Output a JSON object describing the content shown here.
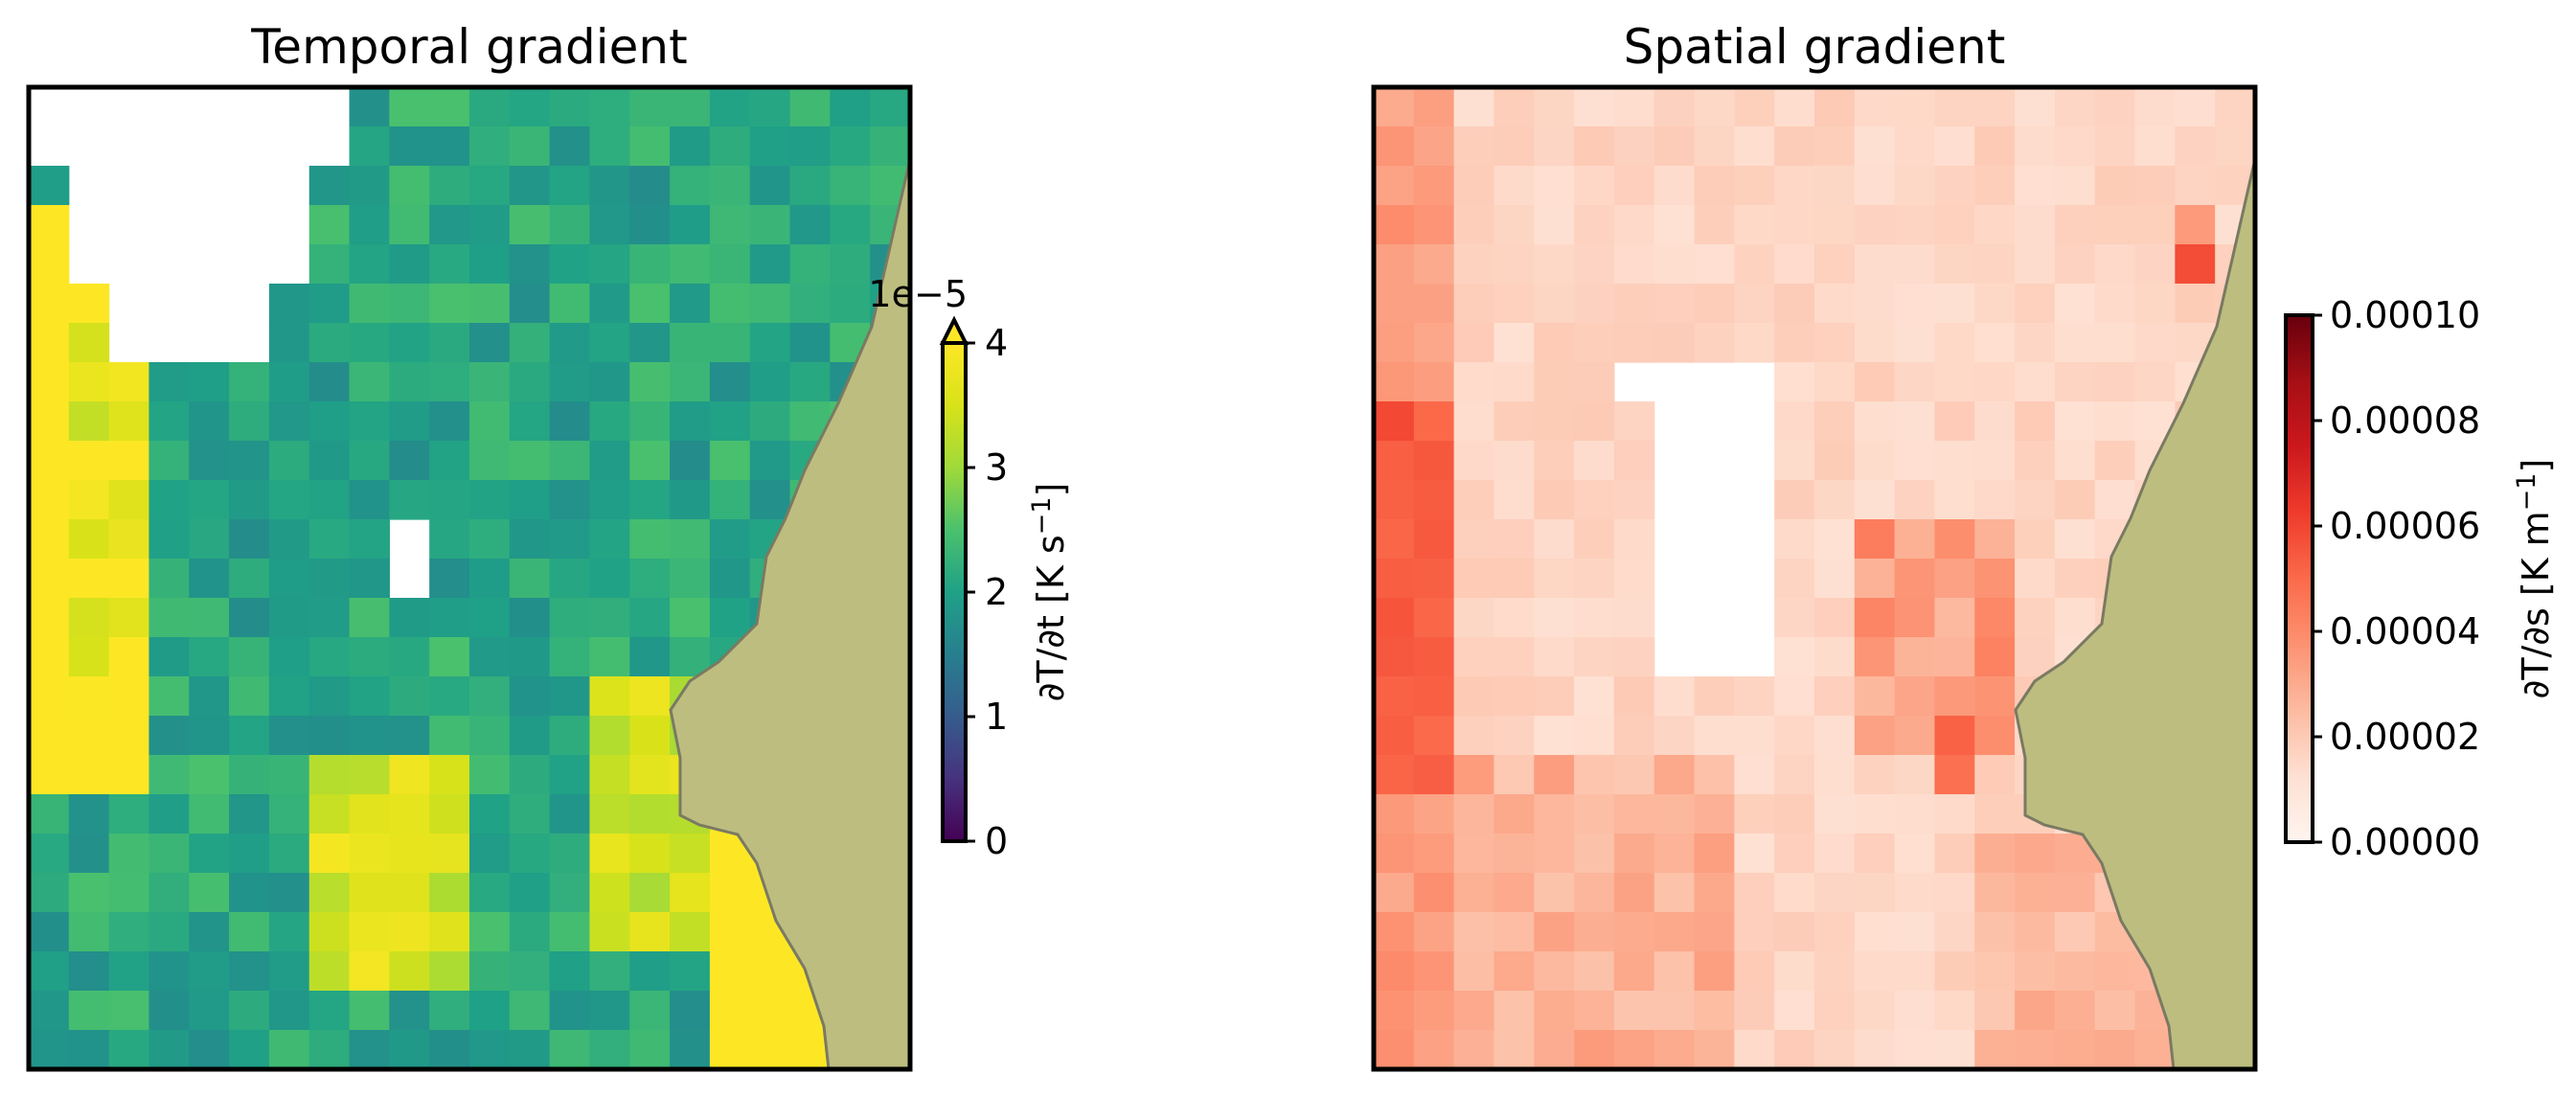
{
  "chart_data": [
    {
      "type": "heatmap",
      "title": "Temporal gradient",
      "colormap": "viridis",
      "colorbar": {
        "label": "∂T/∂t [K s⁻¹]",
        "label_math": {
          "main": "∂T/∂t [K s",
          "sup": "−1",
          "close": "]"
        },
        "offset_text": "1e−5",
        "ticks": [
          "0",
          "1",
          "2",
          "3",
          "4"
        ],
        "range": [
          0,
          4
        ],
        "extend": "max"
      },
      "land_color": "#bdbd80",
      "grid": {
        "rows": 25,
        "cols": 22
      },
      "note": "cell values in units of 1e-5 K s^-1; null = no data"
    },
    {
      "type": "heatmap",
      "title": "Spatial gradient",
      "colormap": "reds",
      "colorbar": {
        "label": "∂T/∂s [K m⁻¹]",
        "label_math": {
          "main": "∂T/∂s [K m",
          "sup": "−1",
          "close": "]"
        },
        "ticks": [
          "0.00000",
          "0.00002",
          "0.00004",
          "0.00006",
          "0.00008",
          "0.00010"
        ],
        "range": [
          0,
          0.0001
        ]
      },
      "land_color": "#bdbd80",
      "grid": {
        "rows": 25,
        "cols": 22
      },
      "note": "cell values in K m^-1; null = no data"
    }
  ]
}
